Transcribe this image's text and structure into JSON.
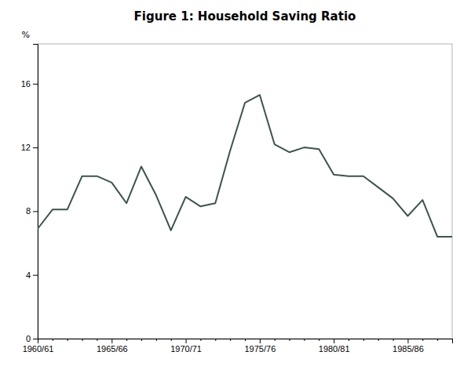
{
  "chart_data": {
    "type": "line",
    "title": "Figure 1: Household Saving Ratio",
    "ylabel": "%",
    "categories": [
      "1960/61",
      null,
      null,
      null,
      null,
      "1965/66",
      null,
      null,
      null,
      null,
      "1970/71",
      null,
      null,
      null,
      null,
      "1975/76",
      null,
      null,
      null,
      null,
      "1980/81",
      null,
      null,
      null,
      null,
      "1985/86",
      null,
      null,
      null
    ],
    "values": [
      6.9,
      8.1,
      8.1,
      10.2,
      10.2,
      9.8,
      8.5,
      10.8,
      9.0,
      6.8,
      8.9,
      8.3,
      8.5,
      11.8,
      14.8,
      15.3,
      12.2,
      11.7,
      12.0,
      11.9,
      10.3,
      10.2,
      10.2,
      9.5,
      8.8,
      7.7,
      8.7,
      6.4,
      6.4
    ],
    "color": "#3a5549",
    "ylim": [
      0,
      18.5
    ],
    "yticks": [
      0,
      4,
      8,
      12,
      16
    ],
    "grid": false
  }
}
